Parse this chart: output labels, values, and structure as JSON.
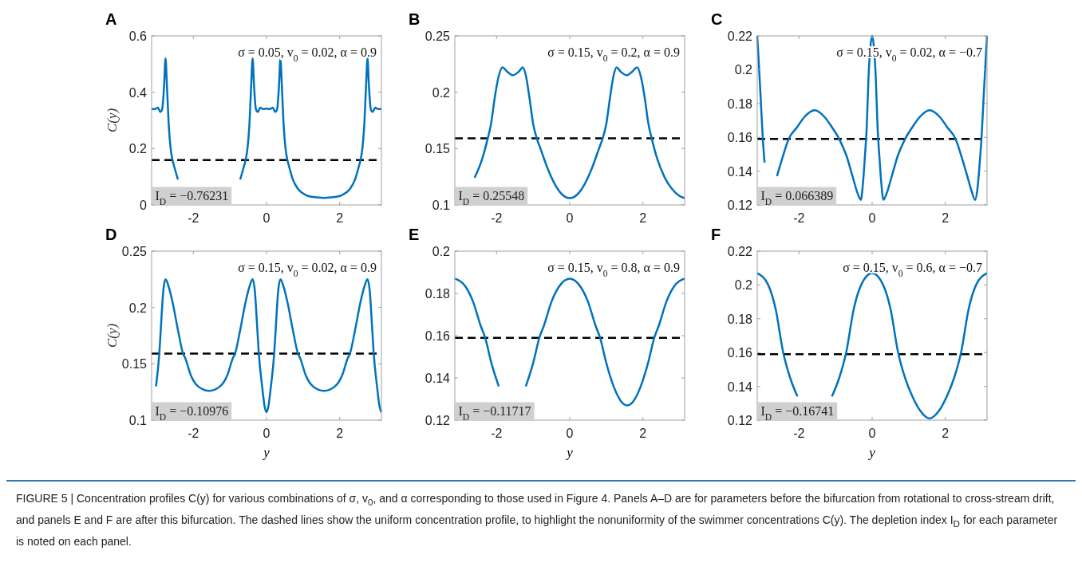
{
  "chart_data": [
    {
      "type": "line",
      "title": "A",
      "ylabel": "C(y)",
      "xlim": [
        -3.14,
        3.14
      ],
      "xticks": [
        -2,
        0,
        2
      ],
      "ylim": [
        0,
        0.6
      ],
      "yticks": [
        0,
        0.2,
        0.4,
        0.6
      ],
      "line_style": "solid",
      "annotations": [
        "σ = 0.05,  v$_{0}$ = 0.02,  α = 0.9",
        "I$_{D}$ = −0.76231",
        "FIGURE 5 | Concentration profiles C(y) for various combinations of σ, v$_{0}$, and α corresponding to those used in Figure 4. Panels A–D are for parameters before the bifurcation from rotational to cross-stream drift, and panels E and F are after this bifurcation. The dashed lines show the uniform concentration profile, to highlight the nonuniformity of the swimmer concentrations C(y). The depletion index I$_{D}$ for each parameter is noted on each panel."
      ],
      "ref_lines": [
        {
          "axis": "y",
          "value": 0.159,
          "color": "#000000",
          "line_style": "dashed"
        }
      ],
      "series": [
        {
          "color": "#0072bd",
          "x": [
            -3.14,
            -3.05,
            -2.97,
            -2.9,
            -2.85,
            -2.8,
            -2.76,
            -2.72,
            -2.67,
            -2.62,
            -2.57,
            -2.52,
            -2.42,
            -2.27,
            -2.07,
            -1.87,
            -1.57,
            -1.27,
            -1.07,
            -0.87,
            -0.72,
            -0.62,
            -0.57,
            -0.52,
            -0.47,
            -0.42,
            -0.38,
            -0.34,
            -0.29,
            -0.24,
            -0.17,
            -0.09,
            0,
            0.09,
            0.17,
            0.24,
            0.29,
            0.34,
            0.38,
            0.42,
            0.47,
            0.52,
            0.57,
            0.62,
            0.72,
            0.87,
            1.07,
            1.27,
            1.57,
            1.87,
            2.07,
            2.27,
            2.42,
            2.52,
            2.57,
            2.62,
            2.67,
            2.72,
            2.76,
            2.8,
            2.85,
            2.9,
            2.97,
            3.05,
            3.14
          ],
          "values": [
            0.34,
            0.34,
            0.345,
            0.33,
            0.34,
            0.42,
            0.52,
            0.42,
            0.28,
            0.2,
            0.16,
            0.135,
            0.09,
            null,
            null,
            null,
            null,
            null,
            null,
            null,
            0.09,
            0.135,
            0.16,
            0.2,
            0.28,
            0.42,
            0.52,
            0.42,
            0.34,
            0.33,
            0.345,
            0.34,
            0.342,
            0.34,
            0.345,
            0.33,
            0.34,
            0.42,
            0.52,
            0.42,
            0.28,
            0.2,
            0.16,
            0.135,
            0.09,
            0.055,
            0.035,
            0.028,
            0.025,
            0.028,
            0.035,
            0.055,
            0.09,
            0.135,
            0.16,
            0.2,
            0.28,
            0.42,
            0.52,
            0.42,
            0.34,
            0.33,
            0.345,
            0.34,
            0.34
          ]
        }
      ]
    },
    {
      "type": "line",
      "title": "B",
      "xlim": [
        -3.14,
        3.14
      ],
      "xticks": [
        -2,
        0,
        2
      ],
      "ylim": [
        0.1,
        0.25
      ],
      "yticks": [
        0.1,
        0.15,
        0.2,
        0.25
      ],
      "line_style": "solid",
      "annotations": [
        "σ = 0.15,  v$_{0}$ = 0.2,  α = 0.9",
        "I$_{D}$ = 0.25548"
      ],
      "ref_lines": [
        {
          "axis": "y",
          "value": 0.159,
          "color": "#000000",
          "line_style": "dashed"
        }
      ],
      "series": [
        {
          "color": "#0072bd",
          "x": [
            -2.6,
            -2.4,
            -2.24,
            -2.15,
            -2.05,
            -1.95,
            -1.84,
            -1.7,
            -1.56,
            -1.4,
            -1.28,
            -1.2,
            -1.1,
            -1.0,
            -0.9,
            -0.8,
            -0.6,
            -0.4,
            -0.2,
            0,
            0.2,
            0.4,
            0.6,
            0.8,
            0.9,
            1.0,
            1.1,
            1.2,
            1.28,
            1.4,
            1.56,
            1.7,
            1.84,
            1.95,
            2.05,
            2.15,
            2.24,
            2.4,
            2.6,
            2.8,
            3.0,
            3.14
          ],
          "values": [
            0.124,
            0.14,
            0.159,
            0.172,
            0.195,
            0.213,
            0.222,
            0.218,
            0.215,
            0.218,
            0.222,
            0.215,
            0.195,
            0.172,
            0.159,
            0.15,
            0.132,
            0.118,
            0.109,
            0.106,
            0.109,
            0.118,
            0.132,
            0.15,
            0.159,
            0.172,
            0.195,
            0.215,
            0.222,
            0.218,
            0.215,
            0.218,
            0.222,
            0.213,
            0.195,
            0.172,
            0.159,
            0.14,
            0.124,
            0.114,
            0.108,
            0.106
          ]
        }
      ]
    },
    {
      "type": "line",
      "title": "C",
      "xlim": [
        -3.14,
        3.14
      ],
      "xticks": [
        -2,
        0,
        2
      ],
      "ylim": [
        0.12,
        0.22
      ],
      "yticks": [
        0.12,
        0.14,
        0.16,
        0.18,
        0.2,
        0.22
      ],
      "line_style": "solid",
      "annotations": [
        "σ = 0.15,  v$_{0}$ = 0.02,  α = −0.7",
        "I$_{D}$ = 0.066389"
      ],
      "ref_lines": [
        {
          "axis": "y",
          "value": 0.159,
          "color": "#000000",
          "line_style": "dashed"
        }
      ],
      "series": [
        {
          "color": "#0072bd",
          "x": [
            -3.14,
            -3.1,
            -3.05,
            -2.99,
            -2.94,
            -2.88,
            -2.81,
            -2.72,
            -2.6,
            -2.45,
            -2.28,
            -2.05,
            -1.85,
            -1.57,
            -1.3,
            -1.1,
            -0.9,
            -0.7,
            -0.55,
            -0.4,
            -0.31,
            -0.25,
            -0.2,
            -0.15,
            -0.1,
            -0.05,
            0,
            0.05,
            0.1,
            0.15,
            0.2,
            0.25,
            0.31,
            0.4,
            0.55,
            0.7,
            0.9,
            1.1,
            1.3,
            1.57,
            1.85,
            2.05,
            2.28,
            2.45,
            2.6,
            2.72,
            2.81,
            2.88,
            2.94,
            2.99,
            3.05,
            3.1,
            3.14
          ],
          "values": [
            0.22,
            0.205,
            0.185,
            0.16,
            0.145,
            null,
            null,
            null,
            0.137,
            0.148,
            0.159,
            0.166,
            0.172,
            0.176,
            0.172,
            0.166,
            0.159,
            0.149,
            0.138,
            0.127,
            0.123,
            0.133,
            0.148,
            0.165,
            0.195,
            0.213,
            0.22,
            0.213,
            0.195,
            0.165,
            0.148,
            0.133,
            0.123,
            0.127,
            0.138,
            0.149,
            0.159,
            0.166,
            0.172,
            0.176,
            0.172,
            0.166,
            0.159,
            0.148,
            0.137,
            0.128,
            0.123,
            0.13,
            0.145,
            0.16,
            0.185,
            0.205,
            0.22
          ]
        }
      ]
    },
    {
      "type": "line",
      "title": "D",
      "xlabel": "y",
      "ylabel": "C(y)",
      "xlim": [
        -3.14,
        3.14
      ],
      "xticks": [
        -2,
        0,
        2
      ],
      "ylim": [
        0.1,
        0.25
      ],
      "yticks": [
        0.1,
        0.15,
        0.2,
        0.25
      ],
      "line_style": "solid",
      "annotations": [
        "σ = 0.15,  v$_{0}$ = 0.02,  α = 0.9",
        "I$_{D}$ = −0.10976"
      ],
      "ref_lines": [
        {
          "axis": "y",
          "value": 0.159,
          "color": "#000000",
          "line_style": "dashed"
        }
      ],
      "series": [
        {
          "color": "#0072bd",
          "x": [
            -3.02,
            -2.93,
            -2.89,
            -2.82,
            -2.76,
            -2.67,
            -2.57,
            -2.42,
            -2.28,
            -2.22,
            -2.07,
            -1.87,
            -1.57,
            -1.27,
            -1.07,
            -0.92,
            -0.86,
            -0.72,
            -0.57,
            -0.47,
            -0.38,
            -0.32,
            -0.25,
            -0.21,
            -0.12,
            -0.05,
            0,
            0.05,
            0.12,
            0.21,
            0.25,
            0.32,
            0.38,
            0.47,
            0.57,
            0.72,
            0.86,
            0.92,
            1.07,
            1.27,
            1.57,
            1.87,
            2.07,
            2.22,
            2.28,
            2.42,
            2.57,
            2.67,
            2.76,
            2.82,
            2.89,
            2.93,
            3.02,
            3.09,
            3.14
          ],
          "values": [
            0.13,
            0.159,
            0.18,
            0.215,
            0.225,
            0.218,
            0.205,
            0.18,
            0.159,
            0.155,
            0.14,
            0.13,
            0.126,
            0.13,
            0.14,
            0.155,
            0.159,
            0.18,
            0.205,
            0.218,
            0.225,
            0.215,
            0.18,
            0.159,
            0.13,
            0.112,
            0.107,
            0.112,
            0.13,
            0.159,
            0.18,
            0.215,
            0.225,
            0.218,
            0.205,
            0.18,
            0.159,
            0.155,
            0.14,
            0.13,
            0.126,
            0.13,
            0.14,
            0.155,
            0.159,
            0.18,
            0.205,
            0.218,
            0.225,
            0.215,
            0.18,
            0.159,
            0.13,
            0.112,
            0.107
          ]
        }
      ]
    },
    {
      "type": "line",
      "title": "E",
      "xlabel": "y",
      "xlim": [
        -3.14,
        3.14
      ],
      "xticks": [
        -2,
        0,
        2
      ],
      "ylim": [
        0.12,
        0.2
      ],
      "yticks": [
        0.12,
        0.14,
        0.16,
        0.18,
        0.2
      ],
      "line_style": "solid",
      "annotations": [
        "σ = 0.15,  v$_{0}$ = 0.8,  α = 0.9",
        "I$_{D}$ = −0.11717"
      ],
      "ref_lines": [
        {
          "axis": "y",
          "value": 0.159,
          "color": "#000000",
          "line_style": "dashed"
        }
      ],
      "series": [
        {
          "color": "#0072bd",
          "x": [
            -3.14,
            -2.84,
            -2.64,
            -2.44,
            -2.31,
            -2.14,
            -1.94,
            -1.74,
            -1.57,
            -1.4,
            -1.2,
            -1.0,
            -0.83,
            -0.7,
            -0.5,
            -0.3,
            0,
            0.3,
            0.5,
            0.7,
            0.83,
            1.0,
            1.2,
            1.4,
            1.57,
            1.74,
            1.94,
            2.14,
            2.31,
            2.44,
            2.64,
            2.84,
            3.14
          ],
          "values": [
            0.187,
            0.183,
            0.176,
            0.165,
            0.159,
            0.147,
            0.136,
            null,
            null,
            null,
            0.136,
            0.147,
            0.159,
            0.165,
            0.176,
            0.183,
            0.187,
            0.183,
            0.176,
            0.165,
            0.159,
            0.147,
            0.136,
            0.129,
            0.127,
            0.129,
            0.136,
            0.147,
            0.159,
            0.165,
            0.176,
            0.183,
            0.187
          ]
        }
      ]
    },
    {
      "type": "line",
      "title": "F",
      "xlabel": "y",
      "xlim": [
        -3.14,
        3.14
      ],
      "xticks": [
        -2,
        0,
        2
      ],
      "ylim": [
        0.12,
        0.22
      ],
      "yticks": [
        0.12,
        0.14,
        0.16,
        0.18,
        0.2,
        0.22
      ],
      "line_style": "solid",
      "annotations": [
        "σ = 0.15,  v$_{0}$ = 0.6,  α = −0.7",
        "I$_{D}$ = −0.16741"
      ],
      "ref_lines": [
        {
          "axis": "y",
          "value": 0.159,
          "color": "#000000",
          "line_style": "dashed"
        }
      ],
      "series": [
        {
          "color": "#0072bd",
          "x": [
            -3.14,
            -2.84,
            -2.64,
            -2.43,
            -2.24,
            -2.04,
            -1.84,
            -1.57,
            -1.3,
            -1.1,
            -0.9,
            -0.71,
            -0.5,
            -0.3,
            0,
            0.3,
            0.5,
            0.71,
            0.9,
            1.1,
            1.3,
            1.57,
            1.84,
            2.04,
            2.24,
            2.43,
            2.64,
            2.84,
            3.14
          ],
          "values": [
            0.207,
            0.2,
            0.186,
            0.16,
            0.145,
            0.134,
            null,
            null,
            null,
            0.134,
            0.145,
            0.16,
            0.186,
            0.2,
            0.207,
            0.2,
            0.186,
            0.16,
            0.145,
            0.134,
            0.126,
            0.121,
            0.126,
            0.134,
            0.145,
            0.16,
            0.186,
            0.2,
            0.207
          ]
        }
      ]
    }
  ]
}
